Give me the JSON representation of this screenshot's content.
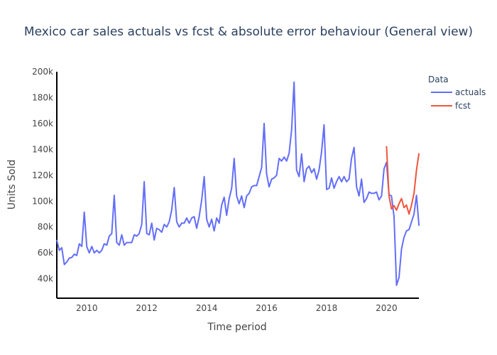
{
  "chart_data": {
    "type": "line",
    "title": "Mexico car sales actuals vs fcst & absolute error behaviour (General view)",
    "xlabel": "Time period",
    "ylabel": "Units Sold",
    "legend_title": "Data",
    "legend_position": "top-right",
    "grid": false,
    "xlim": [
      2009.0,
      2021.08
    ],
    "ylim": [
      25000,
      200000
    ],
    "x_ticks": [
      2010,
      2012,
      2014,
      2016,
      2018,
      2020
    ],
    "y_ticks": [
      40000,
      60000,
      80000,
      100000,
      120000,
      140000,
      160000,
      180000,
      200000
    ],
    "y_tick_labels": [
      "40k",
      "60k",
      "80k",
      "100k",
      "120k",
      "140k",
      "160k",
      "180k",
      "200k"
    ],
    "series": [
      {
        "name": "actuals",
        "color": "#636efa",
        "start": "2009-01",
        "values": [
          70000,
          62000,
          64000,
          51000,
          53000,
          56000,
          56500,
          59000,
          58000,
          67000,
          65000,
          91500,
          65000,
          60000,
          65000,
          60000,
          62000,
          60000,
          62000,
          67000,
          66000,
          73000,
          75000,
          104500,
          68000,
          66000,
          74000,
          66000,
          68000,
          68000,
          68000,
          74000,
          73000,
          75000,
          82000,
          115000,
          75000,
          74000,
          83000,
          70000,
          79000,
          78000,
          76000,
          82000,
          80000,
          84000,
          93000,
          110500,
          84000,
          80000,
          83000,
          83000,
          87000,
          83000,
          87000,
          88000,
          79000,
          88000,
          101000,
          119000,
          86000,
          80000,
          86000,
          77000,
          87000,
          83000,
          97000,
          103000,
          89000,
          102000,
          110000,
          133000,
          104000,
          98000,
          104000,
          95000,
          104000,
          106000,
          111000,
          112000,
          112000,
          119000,
          126000,
          160000,
          121000,
          111000,
          117000,
          118000,
          120000,
          133000,
          131000,
          134000,
          131000,
          137000,
          155000,
          192000,
          124000,
          119000,
          136500,
          115000,
          125000,
          127000,
          122000,
          125000,
          117000,
          124000,
          138000,
          159000,
          109000,
          110000,
          118000,
          110000,
          115000,
          119000,
          115000,
          119000,
          115000,
          117000,
          133000,
          141500,
          111000,
          104000,
          117000,
          99000,
          102000,
          107000,
          106000,
          106000,
          107000,
          101000,
          104000,
          125000,
          130000,
          105000,
          104000,
          88000,
          35000,
          41000,
          63000,
          72000,
          77000,
          78000,
          84000,
          90000,
          104500,
          81000
        ]
      },
      {
        "name": "fcst",
        "color": "#ef553b",
        "start": "2020-01",
        "values": [
          142500,
          104000,
          94000,
          96500,
          93000,
          98000,
          102000,
          95000,
          97000,
          90000,
          97000,
          106000,
          124000,
          137000
        ]
      }
    ]
  }
}
